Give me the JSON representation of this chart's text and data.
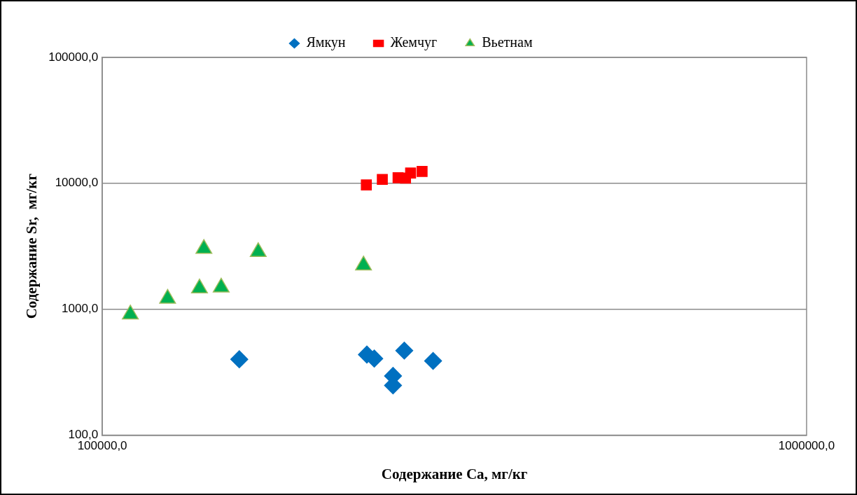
{
  "chart_data": {
    "type": "scatter",
    "xlabel": "Содержание Ca, мг/кг",
    "ylabel": "Содержание Sr,  мг/кг",
    "log": "xy",
    "grid": "y",
    "legend": "top",
    "xlim": [
      100000,
      1000000
    ],
    "xticks": [
      {
        "value": 100000,
        "label": "100000,0"
      },
      {
        "value": 1000000,
        "label": "1000000,0"
      }
    ],
    "ylim": [
      100,
      100000
    ],
    "yticks": [
      {
        "value": 100,
        "label": "100,0"
      },
      {
        "value": 1000,
        "label": "1000,0"
      },
      {
        "value": 10000,
        "label": "10000,0"
      },
      {
        "value": 100000,
        "label": "100000,0"
      }
    ],
    "series": [
      {
        "name": "Ямкун",
        "color": "#0070c0",
        "marker": "diamond",
        "x": [
          156500,
          237500,
          243300,
          268400,
          294900,
          258700,
          258700
        ],
        "values": [
          400,
          436,
          405,
          469,
          388,
          295,
          248
        ]
      },
      {
        "name": "Жемчуг",
        "color": "#ff0000",
        "marker": "square",
        "x": [
          237100,
          249800,
          263000,
          269500,
          274000,
          284500
        ],
        "values": [
          9700,
          10740,
          11070,
          11000,
          12060,
          12410
        ]
      },
      {
        "name": "Вьетнам",
        "color": "#00b050",
        "marker": "triangle",
        "x": [
          109600,
          123800,
          137400,
          147500,
          139400,
          166500,
          234900
        ],
        "values": [
          910,
          1215,
          1466,
          1490,
          3020,
          2850,
          2230
        ]
      }
    ]
  }
}
